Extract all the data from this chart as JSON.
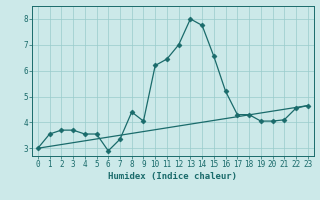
{
  "xlabel": "Humidex (Indice chaleur)",
  "xlim": [
    -0.5,
    23.5
  ],
  "ylim": [
    2.7,
    8.5
  ],
  "yticks": [
    3,
    4,
    5,
    6,
    7,
    8
  ],
  "xticks": [
    0,
    1,
    2,
    3,
    4,
    5,
    6,
    7,
    8,
    9,
    10,
    11,
    12,
    13,
    14,
    15,
    16,
    17,
    18,
    19,
    20,
    21,
    22,
    23
  ],
  "background_color": "#cce9e9",
  "line_color": "#1a6b6b",
  "grid_color": "#99cccc",
  "line1_x": [
    0,
    1,
    2,
    3,
    4,
    5,
    6,
    7,
    8,
    9,
    10,
    11,
    12,
    13,
    14,
    15,
    16,
    17,
    18,
    19,
    20,
    21,
    22,
    23
  ],
  "line1_y": [
    3.0,
    3.55,
    3.7,
    3.7,
    3.55,
    3.55,
    2.9,
    3.35,
    4.4,
    4.05,
    6.2,
    6.45,
    7.0,
    8.0,
    7.75,
    6.55,
    5.2,
    4.3,
    4.3,
    4.05,
    4.05,
    4.1,
    4.55,
    4.65
  ],
  "line2_x": [
    0,
    23
  ],
  "line2_y": [
    3.0,
    4.65
  ],
  "marker_size": 2.5,
  "linewidth": 0.9
}
